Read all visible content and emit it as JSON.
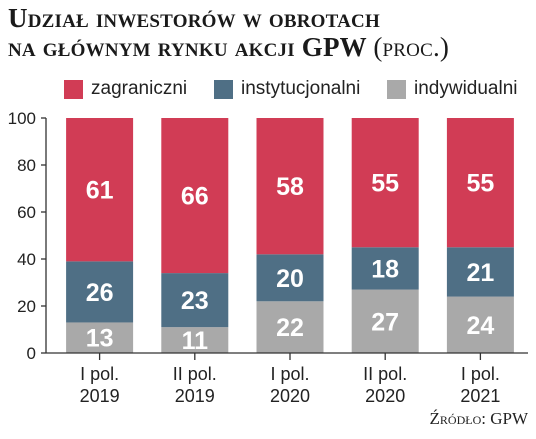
{
  "title_line1": "Udział inwestorów w obrotach",
  "title_line2": "na głównym rynku akcji GPW",
  "title_unit": "(proc.)",
  "source": "Źródło: GPW",
  "colors": {
    "zagraniczni": "#d13c55",
    "instytucjonalni": "#4f6f85",
    "indywidualni": "#a9a9a9"
  },
  "chart_data": {
    "type": "bar",
    "stacked": true,
    "categories": [
      [
        "I pol.",
        "2019"
      ],
      [
        "II pol.",
        "2019"
      ],
      [
        "I pol.",
        "2020"
      ],
      [
        "II pol.",
        "2020"
      ],
      [
        "I pol.",
        "2021"
      ]
    ],
    "series": [
      {
        "name": "indywidualni",
        "values": [
          13,
          11,
          22,
          27,
          24
        ]
      },
      {
        "name": "instytucjonalni",
        "values": [
          26,
          23,
          20,
          18,
          21
        ]
      },
      {
        "name": "zagraniczni",
        "values": [
          61,
          66,
          58,
          55,
          55
        ]
      }
    ],
    "ylim": [
      0,
      100
    ],
    "yticks": [
      0,
      20,
      40,
      60,
      80,
      100
    ],
    "legend_position": "top",
    "grid": false
  }
}
